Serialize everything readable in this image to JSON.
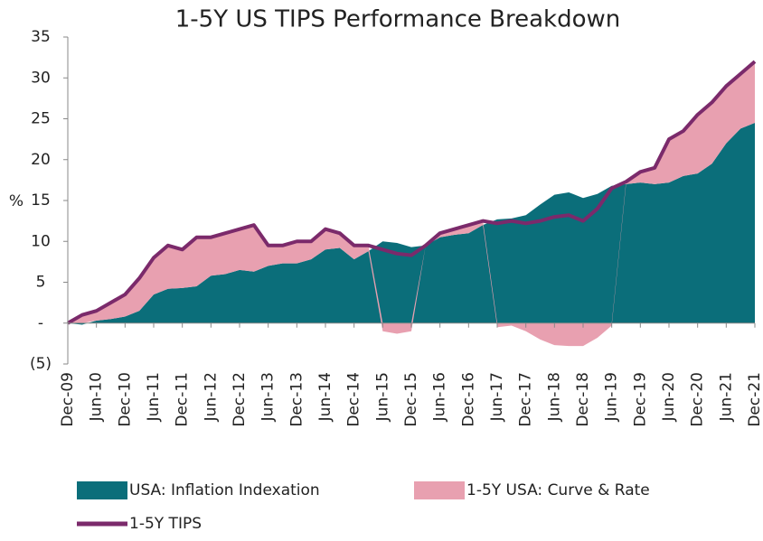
{
  "chart_data": {
    "type": "stacked_area_line",
    "title": "1-5Y US TIPS Performance Breakdown",
    "y_label": "%",
    "categories": [
      "Dec-09",
      null,
      "Jun-10",
      null,
      "Dec-10",
      null,
      "Jun-11",
      null,
      "Dec-11",
      null,
      "Jun-12",
      null,
      "Dec-12",
      null,
      "Jun-13",
      null,
      "Dec-13",
      null,
      "Jun-14",
      null,
      "Dec-14",
      null,
      "Jun-15",
      null,
      "Dec-15",
      null,
      "Jun-16",
      null,
      "Dec-16",
      null,
      "Jun-17",
      null,
      "Dec-17",
      null,
      "Jun-18",
      null,
      "Dec-18",
      null,
      "Jun-19",
      null,
      "Dec-19",
      null,
      "Jun-20",
      null,
      "Dec-20",
      null,
      "Jun-21",
      null,
      "Dec-21"
    ],
    "series": [
      {
        "name": "USA: Inflation Indexation",
        "color": "#0b6e7a",
        "kind": "area",
        "values": [
          0,
          -0.2,
          0.3,
          0.5,
          0.8,
          1.5,
          3.5,
          4.2,
          4.3,
          4.5,
          5.8,
          6,
          6.5,
          6.3,
          7,
          7.3,
          7.3,
          7.8,
          9,
          9.2,
          7.8,
          8.8,
          10,
          9.8,
          9.3,
          9.5,
          10.5,
          10.8,
          11,
          12,
          12.7,
          12.8,
          13.2,
          14.5,
          15.7,
          16,
          15.3,
          15.8,
          16.8,
          17,
          17.2,
          17,
          17.2,
          18,
          18.3,
          19.5,
          22,
          23.8,
          24.5
        ]
      },
      {
        "name": "1-5Y USA: Curve & Rate",
        "color": "#e8a0b0",
        "kind": "area",
        "values": [
          0,
          1.2,
          1.2,
          2.0,
          2.7,
          4.0,
          4.5,
          5.3,
          4.7,
          6.0,
          4.7,
          5.0,
          5.0,
          5.7,
          2.5,
          2.2,
          2.7,
          2.2,
          2.5,
          1.8,
          1.7,
          0.7,
          -1.0,
          -1.3,
          -1.0,
          0,
          0.5,
          0.7,
          1.0,
          0.5,
          -0.5,
          -0.3,
          -1.0,
          -2.0,
          -2.7,
          -2.8,
          -2.8,
          -1.8,
          -0.3,
          0.3,
          1.3,
          2.0,
          5.3,
          5.5,
          7.2,
          7.5,
          7.0,
          6.7,
          7.5
        ]
      },
      {
        "name": "1-5Y TIPS",
        "color": "#7b2a6b",
        "kind": "line",
        "values": [
          0,
          1,
          1.5,
          2.5,
          3.5,
          5.5,
          8,
          9.5,
          9,
          10.5,
          10.5,
          11,
          11.5,
          12,
          9.5,
          9.5,
          10,
          10,
          11.5,
          11,
          9.5,
          9.5,
          9,
          8.5,
          8.3,
          9.5,
          11,
          11.5,
          12,
          12.5,
          12.2,
          12.5,
          12.2,
          12.5,
          13,
          13.2,
          12.5,
          14,
          16.5,
          17.3,
          18.5,
          19,
          22.5,
          23.5,
          25.5,
          27,
          29,
          30.5,
          32
        ]
      }
    ],
    "ylim": [
      -5,
      35
    ],
    "yticks": [
      {
        "value": -5,
        "label": "(5)"
      },
      {
        "value": 0,
        "label": "-"
      },
      5,
      10,
      15,
      20,
      25,
      30,
      35
    ]
  }
}
